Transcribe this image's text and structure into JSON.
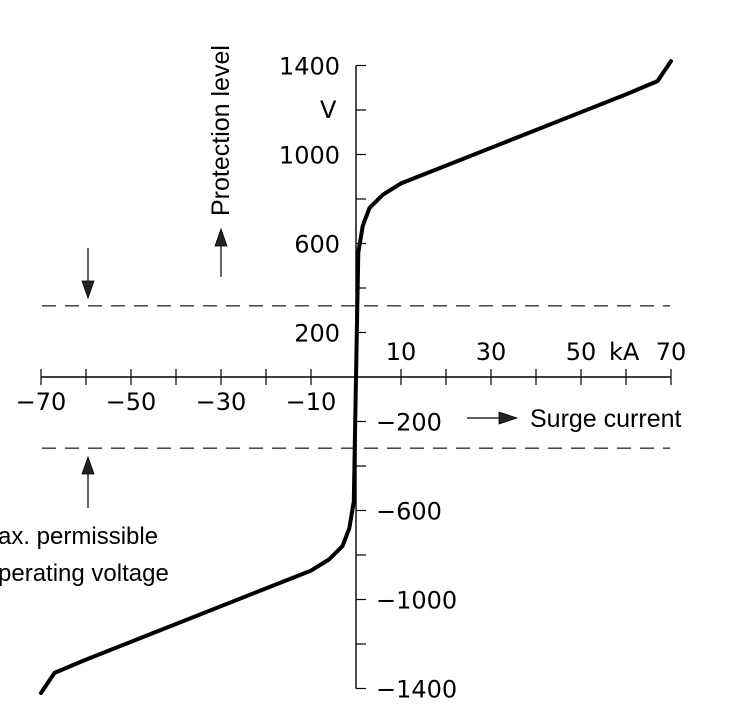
{
  "chart_data": {
    "type": "line",
    "xlabel": "Surge current",
    "ylabel": "Protection level",
    "y_unit": "V",
    "x_unit": "kA",
    "xlim": [
      -70,
      70
    ],
    "ylim": [
      -1400,
      1400
    ],
    "x_tick_labels_pos": [
      "10",
      "30",
      "50",
      "70"
    ],
    "x_tick_labels_neg": [
      "-70",
      "-50",
      "-30",
      "-10"
    ],
    "y_tick_labels_pos": [
      "1400",
      "1000",
      "600",
      "200"
    ],
    "y_tick_labels_neg": [
      "-200",
      "-600",
      "-1000",
      "-1400"
    ],
    "series": [
      {
        "x": [
          -70,
          -67,
          -60,
          -50,
          -40,
          -30,
          -20,
          -10,
          -6,
          -3,
          -1.5,
          -0.5,
          0,
          0.5,
          1.5,
          3,
          6,
          10,
          20,
          30,
          40,
          50,
          60,
          67,
          70
        ],
        "y": [
          -1420,
          -1330,
          -1270,
          -1190,
          -1110,
          -1030,
          -950,
          -870,
          -820,
          -760,
          -680,
          -560,
          0,
          560,
          680,
          760,
          820,
          870,
          950,
          1030,
          1110,
          1190,
          1270,
          1330,
          1420
        ]
      }
    ],
    "reference_lines": {
      "max_operating_voltage": [
        320,
        -320
      ]
    },
    "annotation": [
      "ax. permissible",
      "perating voltage"
    ]
  }
}
